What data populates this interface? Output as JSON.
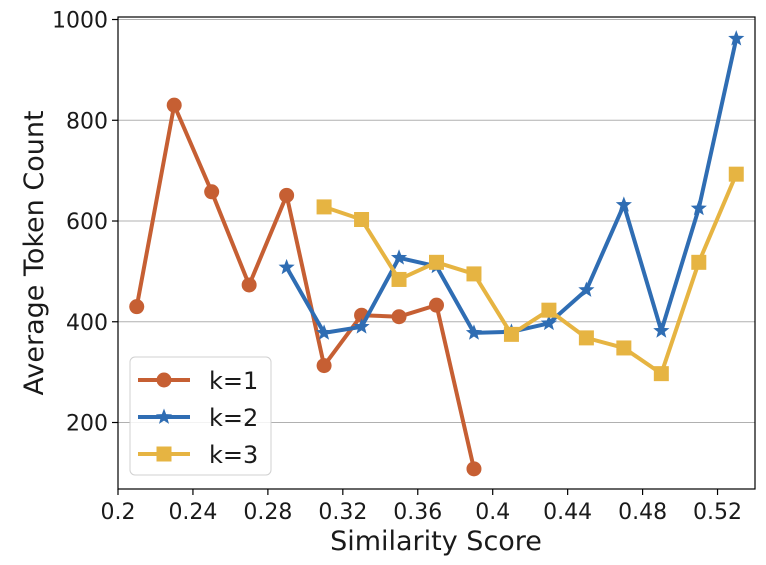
{
  "chart_data": {
    "type": "line",
    "title": "",
    "xlabel": "Similarity Score",
    "ylabel": "Average Token Count",
    "xlim": [
      0.2,
      0.54
    ],
    "ylim": [
      68,
      1005
    ],
    "xticks": [
      {
        "value": 0.2,
        "label": "0.2"
      },
      {
        "value": 0.24,
        "label": "0.24"
      },
      {
        "value": 0.28,
        "label": "0.28"
      },
      {
        "value": 0.32,
        "label": "0.32"
      },
      {
        "value": 0.36,
        "label": "0.36"
      },
      {
        "value": 0.4,
        "label": "0.4"
      },
      {
        "value": 0.44,
        "label": "0.44"
      },
      {
        "value": 0.48,
        "label": "0.48"
      },
      {
        "value": 0.52,
        "label": "0.52"
      }
    ],
    "yticks": [
      {
        "value": 200,
        "label": "200"
      },
      {
        "value": 400,
        "label": "400"
      },
      {
        "value": 600,
        "label": "600"
      },
      {
        "value": 800,
        "label": "800"
      },
      {
        "value": 1000,
        "label": "1000"
      }
    ],
    "grid": "horizontal",
    "legend_position": "lower-left",
    "series": [
      {
        "name": "k=1",
        "color": "#c65f33",
        "marker": "circle",
        "x": [
          0.21,
          0.23,
          0.25,
          0.27,
          0.29,
          0.31,
          0.33,
          0.35,
          0.37,
          0.39
        ],
        "y": [
          430,
          830,
          658,
          473,
          651,
          313,
          413,
          410,
          433,
          108
        ]
      },
      {
        "name": "k=2",
        "color": "#2f6db3",
        "marker": "star",
        "x": [
          0.29,
          0.31,
          0.33,
          0.35,
          0.37,
          0.39,
          0.41,
          0.43,
          0.45,
          0.47,
          0.49,
          0.51,
          0.53
        ],
        "y": [
          508,
          378,
          390,
          527,
          510,
          378,
          380,
          397,
          463,
          632,
          382,
          625,
          962
        ]
      },
      {
        "name": "k=3",
        "color": "#e6b442",
        "marker": "square",
        "x": [
          0.31,
          0.33,
          0.35,
          0.37,
          0.39,
          0.41,
          0.43,
          0.45,
          0.47,
          0.49,
          0.51,
          0.53
        ],
        "y": [
          628,
          603,
          484,
          518,
          495,
          375,
          423,
          368,
          348,
          297,
          518,
          693
        ]
      }
    ]
  }
}
